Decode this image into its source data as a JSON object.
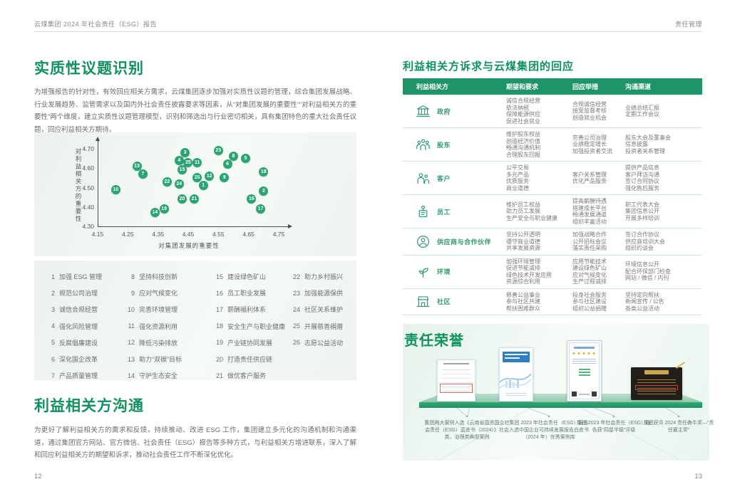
{
  "header": {
    "left": "云煤集团 2024 年社会责任（ESG）报告",
    "right": "责任管理"
  },
  "colors": {
    "accent": "#10915f",
    "dot": "#2aa472",
    "thead": "#1e9468",
    "name-green": "#2f9e6f"
  },
  "left_page": {
    "section1_title": "实质性议题识别",
    "section1_body": "为增强报告的针对性，有效回应相关方需求，云煤集团逐步加强对实质性议题的管理，综合集团发展战略、行业发展趋势、监管需求以及国内外社会责任披露要求等因素，从“对集团发展的重要性”“对利益相关方的重要性”两个维度，建立实质性议题管理模型，识别和筛选出与行业密切相关，具有集团特色的重大社会责任议题，回应利益相关方期待。",
    "issues": [
      {
        "n": "1",
        "label": "加强 ESG 管理"
      },
      {
        "n": "2",
        "label": "规范公司治理"
      },
      {
        "n": "3",
        "label": "诚信合规经营"
      },
      {
        "n": "4",
        "label": "强化风险管理"
      },
      {
        "n": "5",
        "label": "反腐倡廉建设"
      },
      {
        "n": "6",
        "label": "深化国企改革"
      },
      {
        "n": "7",
        "label": "产品质量管理"
      },
      {
        "n": "8",
        "label": "坚持科技创新"
      },
      {
        "n": "9",
        "label": "应对气候变化"
      },
      {
        "n": "10",
        "label": "完善环境管理"
      },
      {
        "n": "11",
        "label": "强化资源利用"
      },
      {
        "n": "12",
        "label": "降低污染排放"
      },
      {
        "n": "13",
        "label": "助力“双碳”目标"
      },
      {
        "n": "14",
        "label": "守护生态安全"
      },
      {
        "n": "15",
        "label": "建设绿色矿山"
      },
      {
        "n": "16",
        "label": "员工职业发展"
      },
      {
        "n": "17",
        "label": "薪酬福利体系"
      },
      {
        "n": "18",
        "label": "安全生产与职业健康"
      },
      {
        "n": "19",
        "label": "产业链协同发展"
      },
      {
        "n": "20",
        "label": "打造责任供应链"
      },
      {
        "n": "21",
        "label": "做优客户服务"
      },
      {
        "n": "22",
        "label": "助力乡村振兴"
      },
      {
        "n": "23",
        "label": "加强能源保供"
      },
      {
        "n": "24",
        "label": "社区关系维护"
      },
      {
        "n": "25",
        "label": "开展慈善捐赠"
      },
      {
        "n": "26",
        "label": "志愿公益活动"
      }
    ],
    "section2_title": "利益相关方沟通",
    "section2_body": "为更好了解利益相关方的需求和反馈，持续推动、改进 ESG 工作，集团建立多元化的沟通机制和沟通渠道，通过集团官方网站、官方微信、社会责任（ESG）报告等多种方式，与利益相关方增进联系，深入了解和回应利益相关方的期望和诉求，推动社会责任工作不断深化优化。",
    "page_number": "12"
  },
  "chart_data": {
    "type": "scatter",
    "title": "",
    "xlabel": "对集团发展的重要性",
    "ylabel": "对利益相关方的重要性",
    "xlim": [
      4.15,
      4.75
    ],
    "ylim": [
      4.3,
      4.7
    ],
    "grid": false,
    "x_ticks": [
      "4.15",
      "4.25",
      "4.35",
      "4.45",
      "4.55",
      "4.65",
      "4.75"
    ],
    "y_ticks": [
      "4.70",
      "4.60",
      "4.50",
      "4.40",
      "4.30"
    ],
    "points": [
      {
        "n": 1,
        "x": 4.5,
        "y": 4.51
      },
      {
        "n": 2,
        "x": 4.7,
        "y": 4.48
      },
      {
        "n": 3,
        "x": 4.44,
        "y": 4.68
      },
      {
        "n": 4,
        "x": 4.42,
        "y": 4.64
      },
      {
        "n": 5,
        "x": 4.64,
        "y": 4.65
      },
      {
        "n": 6,
        "x": 4.58,
        "y": 4.62
      },
      {
        "n": 7,
        "x": 4.3,
        "y": 4.57
      },
      {
        "n": 8,
        "x": 4.6,
        "y": 4.66
      },
      {
        "n": 9,
        "x": 4.57,
        "y": 4.55
      },
      {
        "n": 10,
        "x": 4.21,
        "y": 4.49
      },
      {
        "n": 11,
        "x": 4.48,
        "y": 4.63
      },
      {
        "n": 12,
        "x": 4.52,
        "y": 4.56
      },
      {
        "n": 13,
        "x": 4.28,
        "y": 4.61
      },
      {
        "n": 14,
        "x": 4.34,
        "y": 4.37
      },
      {
        "n": 15,
        "x": 4.43,
        "y": 4.59
      },
      {
        "n": 16,
        "x": 4.66,
        "y": 4.44
      },
      {
        "n": 17,
        "x": 4.69,
        "y": 4.39
      },
      {
        "n": 18,
        "x": 4.7,
        "y": 4.58
      },
      {
        "n": 19,
        "x": 4.37,
        "y": 4.39
      },
      {
        "n": 20,
        "x": 4.43,
        "y": 4.44
      },
      {
        "n": 21,
        "x": 4.47,
        "y": 4.44
      },
      {
        "n": 22,
        "x": 4.38,
        "y": 4.53
      },
      {
        "n": 23,
        "x": 4.55,
        "y": 4.69
      },
      {
        "n": 24,
        "x": 4.42,
        "y": 4.52
      },
      {
        "n": 25,
        "x": 4.45,
        "y": 4.63
      },
      {
        "n": 26,
        "x": 4.48,
        "y": 4.55
      }
    ]
  },
  "right_page": {
    "table_title": "利益相关方诉求与云煤集团的回应",
    "table_headers": [
      "利益相关方",
      "期望和要求",
      "回应举措",
      "沟通渠道"
    ],
    "stakeholders": [
      {
        "name": "政府",
        "icon": "government-icon",
        "expectations": [
          "诚信合规经营",
          "依法纳税",
          "保障能源供应",
          "促进社会就业"
        ],
        "responses": [
          "合规诚信经营",
          "接受监督考核",
          "创造就业机会"
        ],
        "channels": [
          "业绩总结汇报",
          "定期工作会议"
        ]
      },
      {
        "name": "股东",
        "icon": "shareholders-icon",
        "expectations": [
          "维护股东权益",
          "创造经济价值",
          "畅通沟通机制",
          "合理股东回报"
        ],
        "responses": [
          "完善公司治理",
          "业绩稳定增长",
          "加强投资者交流"
        ],
        "channels": [
          "股东大会及董事会",
          "信息披露",
          "投资者关系管理"
        ]
      },
      {
        "name": "客户",
        "icon": "customers-icon",
        "expectations": [
          "公平交易",
          "多元产品",
          "优质服务",
          "商业道德"
        ],
        "responses": [
          "客户关系管理",
          "优化产品服务"
        ],
        "channels": [
          "提供产品信息",
          "客户拜访沟通",
          "签订合同协议",
          "强化售后服务"
        ]
      },
      {
        "name": "员工",
        "icon": "employees-icon",
        "expectations": [
          "维护员工权益",
          "助力员工发展",
          "生产安全与职业健康"
        ],
        "responses": [
          "提高薪酬待遇",
          "搭建成长平台",
          "畅通发展通道",
          "组织丰富活动"
        ],
        "channels": [
          "职工代表大会",
          "集团信息公开",
          "开展多样培训"
        ]
      },
      {
        "name": "供应商与合作伙伴",
        "icon": "suppliers-icon",
        "expectations": [
          "坚持公开透明",
          "遵守商业道德",
          "共享发展资源"
        ],
        "responses": [
          "加强战略合作",
          "公开招标会议",
          "落实责任采购"
        ],
        "channels": [
          "签订合作协议",
          "供应商培训大会",
          "组织约谈会"
        ]
      },
      {
        "name": "环境",
        "icon": "environment-icon",
        "expectations": [
          "加强环境管理",
          "促进节能减排",
          "绿色技术开发应用",
          "资源综合利用"
        ],
        "responses": [
          "应用节能技术",
          "建设绿色矿山",
          "应对气候变化",
          "生产过程减排"
        ],
        "channels": [
          "环境信息公开",
          "配合环保部门检查",
          "网站 / 微信 / 内刊"
        ]
      },
      {
        "name": "社区",
        "icon": "community-icon",
        "expectations": [
          "慈善公益事业",
          "参与社区共建",
          "帮扶困难群众"
        ],
        "responses": [
          "投身社会服务",
          "参与社区建设",
          "组织公益捐赠"
        ],
        "channels": [
          "坚持定向帮扶",
          "新闻宣传 / 公告",
          "各类公益活动"
        ]
      }
    ],
    "honors_title": "责任荣誉",
    "honors": [
      {
        "caption": "集团两大案例入选《云南省国资国企社会责任（ESG）蓝皮书（2024）》社会类、治理类典型案例"
      },
      {
        "caption": "集团 2023 年社会责任（ESG）报告入选中国企业可持续发展报告白皮书（2024 年）优秀案例库"
      },
      {
        "caption": "集团 2023 年社会责任（ESG）报告获“四星半级”评级"
      },
      {
        "caption": "集团获评 2024 责任犇牛奖—“责任雇主奖”"
      }
    ],
    "page_number": "13"
  }
}
